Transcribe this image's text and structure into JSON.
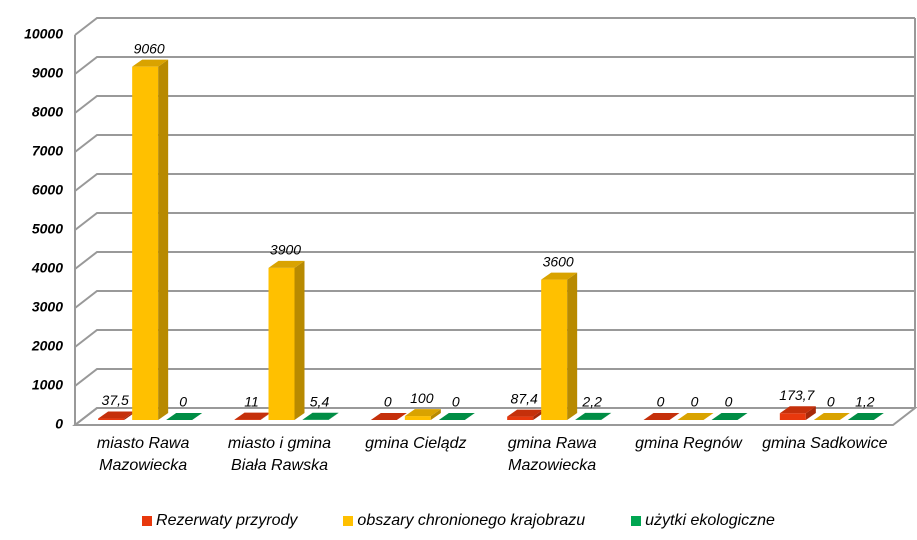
{
  "chart_data": {
    "type": "bar3d",
    "categories": [
      "miasto Rawa Mazowiecka",
      "miasto i gmina Biała Rawska",
      "gmina Cielądz",
      "gmina Rawa Mazowiecka",
      "gmina Regnów",
      "gmina Sadkowice"
    ],
    "series": [
      {
        "name": "Rezerwaty przyrody",
        "color": "#e8380d",
        "values": [
          37.5,
          11,
          0,
          87.4,
          0,
          173.7
        ],
        "value_labels": [
          "37,5",
          "11",
          "0",
          "87,4",
          "0",
          "173,7"
        ]
      },
      {
        "name": "obszary chronionego krajobrazu",
        "color": "#ffc000",
        "values": [
          9060,
          3900,
          100,
          3600,
          0,
          0
        ],
        "value_labels": [
          "9060",
          "3900",
          "100",
          "3600",
          "0",
          "0"
        ]
      },
      {
        "name": "użytki ekologiczne",
        "color": "#00a651",
        "values": [
          0,
          5.4,
          0,
          2.2,
          0,
          1.2
        ],
        "value_labels": [
          "0",
          "5,4",
          "0",
          "2,2",
          "0",
          "1,2"
        ]
      }
    ],
    "ylim": [
      0,
      10000
    ],
    "yticks": [
      0,
      1000,
      2000,
      3000,
      4000,
      5000,
      6000,
      7000,
      8000,
      9000,
      10000
    ],
    "grid": true,
    "legend": "bottom"
  }
}
